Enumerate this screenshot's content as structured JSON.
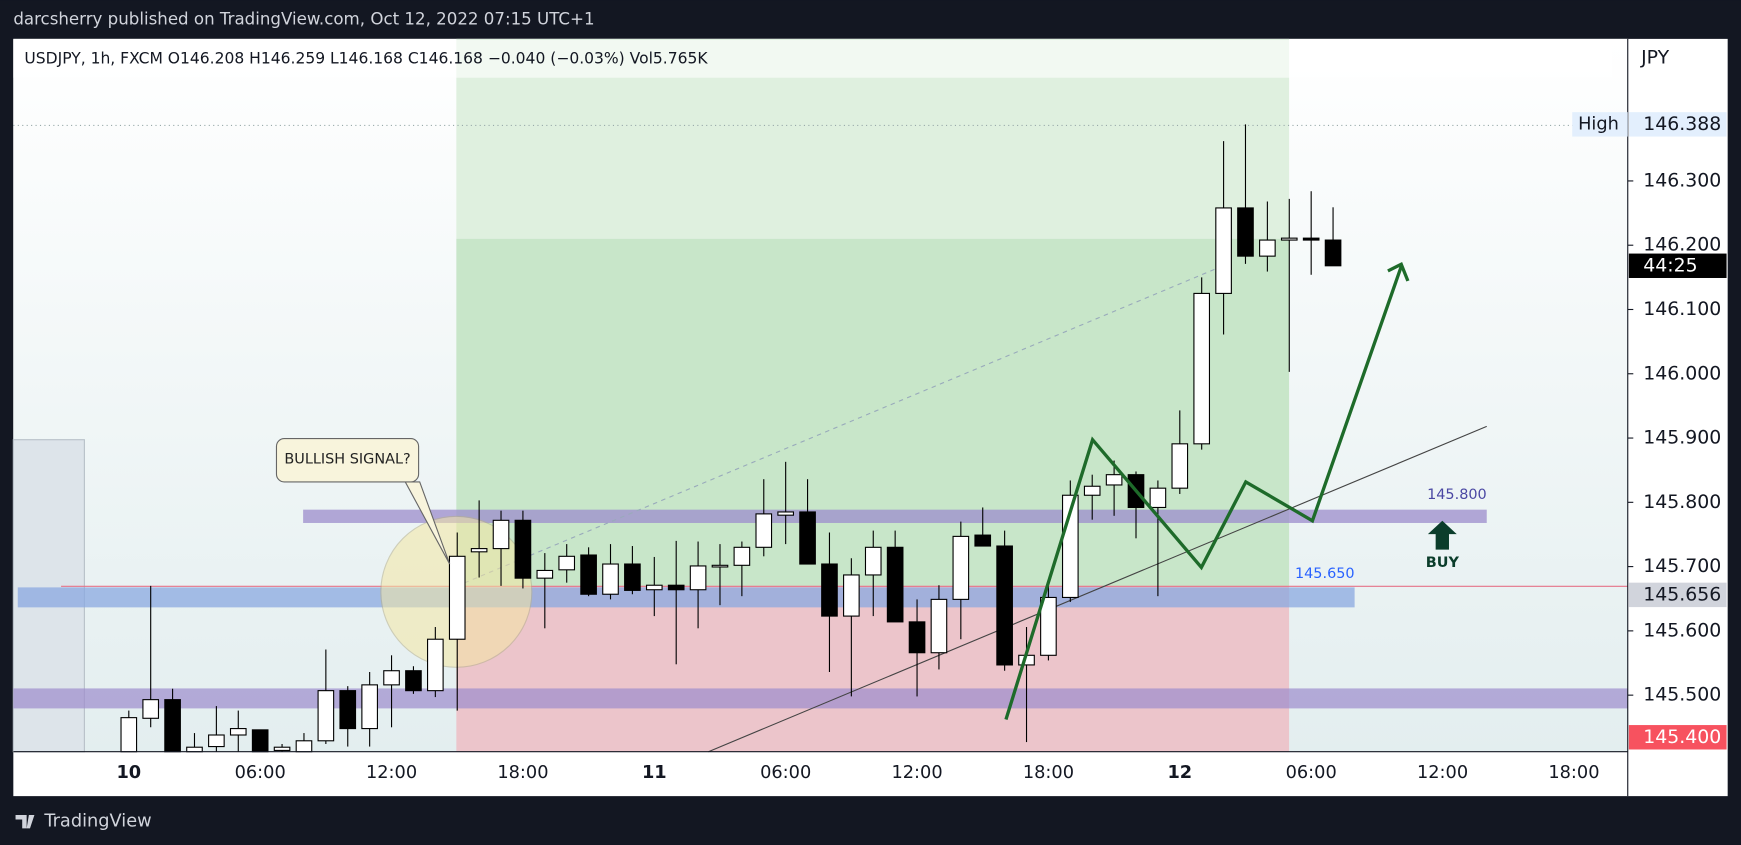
{
  "chart_data": {
    "type": "candlestick",
    "title": "darcsherry published on TradingView.com, Oct 12, 2022 07:15 UTC+1",
    "legend": "USDJPY, 1h, FXCM  O146.208  H146.259  L146.168  C146.168  −0.040 (−0.03%)  Vol5.765K",
    "currency": "JPY",
    "brand": "TradingView",
    "categories": [
      "10",
      null,
      null,
      null,
      null,
      null,
      "06:00",
      null,
      null,
      null,
      null,
      null,
      "12:00",
      null,
      null,
      null,
      null,
      null,
      "18:00",
      null,
      null,
      null,
      null,
      null,
      "11",
      null,
      null,
      null,
      null,
      null,
      "06:00",
      null,
      null,
      null,
      null,
      null,
      "12:00",
      null,
      null,
      null,
      null,
      null,
      "18:00",
      null,
      null,
      null,
      null,
      null,
      "12",
      null,
      null,
      null,
      null,
      null,
      "06:00",
      null,
      null,
      null,
      null,
      null,
      "12:00",
      null,
      null,
      null,
      null,
      null,
      "18:00"
    ],
    "open": [
      145.412,
      145.464,
      145.493,
      145.412,
      145.42,
      145.438,
      145.446,
      145.414,
      145.412,
      145.429,
      145.507,
      145.448,
      145.516,
      145.538,
      145.507,
      145.587,
      145.723,
      145.728,
      145.772,
      145.682,
      145.695,
      145.718,
      145.657,
      145.704,
      145.664,
      145.671,
      145.664,
      145.701,
      145.702,
      145.73,
      145.78,
      145.785,
      145.704,
      145.623,
      145.687,
      145.73,
      145.614,
      145.566,
      145.649,
      145.749,
      145.732,
      145.547,
      145.562,
      145.652,
      145.811,
      145.827,
      145.843,
      145.792,
      145.822,
      145.891,
      146.125,
      146.258,
      146.183,
      146.208,
      146.211,
      146.208,
      null,
      null,
      null,
      null,
      null,
      null,
      null,
      null,
      null,
      null,
      null
    ],
    "high": [
      145.476,
      145.67,
      145.51,
      145.441,
      145.483,
      145.476,
      145.446,
      145.424,
      145.441,
      145.571,
      145.514,
      145.536,
      145.562,
      145.545,
      145.606,
      145.753,
      145.803,
      145.787,
      145.787,
      145.721,
      145.735,
      145.73,
      145.735,
      145.732,
      145.715,
      145.74,
      145.739,
      145.735,
      145.739,
      145.836,
      145.863,
      145.836,
      145.753,
      145.713,
      145.756,
      145.756,
      145.649,
      145.671,
      145.77,
      145.792,
      145.756,
      145.606,
      145.67,
      145.834,
      145.843,
      145.865,
      145.848,
      145.834,
      145.943,
      146.15,
      146.362,
      146.388,
      146.268,
      146.272,
      146.284,
      146.259,
      null,
      null,
      null,
      null,
      null,
      null,
      null,
      null,
      null,
      null,
      null
    ],
    "low": [
      145.412,
      145.45,
      145.412,
      145.412,
      145.412,
      145.412,
      145.412,
      145.412,
      145.412,
      145.424,
      145.42,
      145.42,
      145.45,
      145.502,
      145.497,
      145.476,
      145.683,
      145.67,
      145.666,
      145.604,
      145.675,
      145.654,
      145.649,
      145.657,
      145.623,
      145.548,
      145.604,
      145.64,
      145.654,
      145.716,
      145.735,
      145.704,
      145.536,
      145.498,
      145.623,
      145.614,
      145.498,
      145.54,
      145.587,
      145.735,
      145.538,
      145.427,
      145.554,
      145.645,
      145.773,
      145.779,
      145.744,
      145.654,
      145.813,
      145.882,
      146.061,
      146.171,
      146.159,
      146.003,
      146.154,
      146.168,
      null,
      null,
      null,
      null,
      null,
      null,
      null,
      null,
      null,
      null,
      null
    ],
    "close": [
      145.465,
      145.493,
      145.412,
      145.419,
      145.438,
      145.448,
      145.412,
      145.419,
      145.429,
      145.507,
      145.448,
      145.516,
      145.538,
      145.507,
      145.587,
      145.716,
      145.728,
      145.772,
      145.682,
      145.694,
      145.716,
      145.657,
      145.704,
      145.663,
      145.671,
      145.664,
      145.701,
      145.702,
      145.73,
      145.782,
      145.785,
      145.704,
      145.623,
      145.687,
      145.73,
      145.614,
      145.566,
      145.649,
      145.747,
      145.732,
      145.547,
      145.562,
      145.652,
      145.811,
      145.825,
      145.843,
      145.792,
      145.822,
      145.891,
      146.125,
      146.258,
      146.183,
      146.208,
      146.211,
      146.208,
      146.168,
      null,
      null,
      null,
      null,
      null,
      null,
      null,
      null,
      null,
      null,
      null
    ],
    "up_color": "#ffffff",
    "down_color": "#000000",
    "ylim": [
      145.412,
      146.521
    ],
    "yticks": [
      {
        "value": 145.5,
        "label": "145.500"
      },
      {
        "value": 145.6,
        "label": "145.600"
      },
      {
        "value": 145.7,
        "label": "145.700"
      },
      {
        "value": 145.8,
        "label": "145.800"
      },
      {
        "value": 145.9,
        "label": "145.900"
      },
      {
        "value": 146.0,
        "label": "146.000"
      },
      {
        "value": 146.1,
        "label": "146.100"
      },
      {
        "value": 146.2,
        "label": "146.200"
      },
      {
        "value": 146.3,
        "label": "146.300"
      }
    ],
    "grid": false,
    "price_labels": [
      {
        "value": 146.388,
        "label": "146.388",
        "tag": "High",
        "color": "#e3effd",
        "text_color": "#131722"
      },
      {
        "value": 146.168,
        "label": "44:25",
        "color": "#000000",
        "text_color": "#ffffff"
      },
      {
        "value": 145.656,
        "label": "145.656",
        "color": "#d1d4dc",
        "text_color": "#131722"
      },
      {
        "value": 145.4,
        "label": "145.400",
        "color": "#f7525f",
        "text_color": "#ffffff"
      }
    ],
    "annotations": {
      "callout": "BULLISH SIGNAL?",
      "level_high": "145.800",
      "level_low": "145.650",
      "buy": "BUY"
    }
  }
}
